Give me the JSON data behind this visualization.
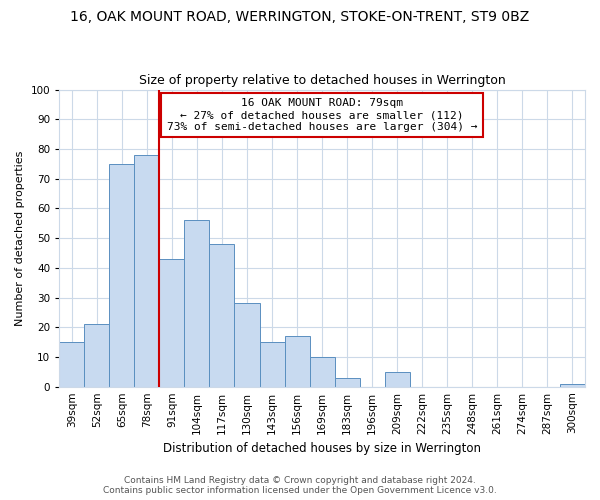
{
  "title": "16, OAK MOUNT ROAD, WERRINGTON, STOKE-ON-TRENT, ST9 0BZ",
  "subtitle": "Size of property relative to detached houses in Werrington",
  "xlabel": "Distribution of detached houses by size in Werrington",
  "ylabel": "Number of detached properties",
  "bin_labels": [
    "39sqm",
    "52sqm",
    "65sqm",
    "78sqm",
    "91sqm",
    "104sqm",
    "117sqm",
    "130sqm",
    "143sqm",
    "156sqm",
    "169sqm",
    "183sqm",
    "196sqm",
    "209sqm",
    "222sqm",
    "235sqm",
    "248sqm",
    "261sqm",
    "274sqm",
    "287sqm",
    "300sqm"
  ],
  "bar_values": [
    15,
    21,
    75,
    78,
    43,
    56,
    48,
    28,
    15,
    17,
    10,
    3,
    0,
    5,
    0,
    0,
    0,
    0,
    0,
    0,
    1
  ],
  "bar_color": "#c8daf0",
  "bar_edge_color": "#5a8fc0",
  "vline_x_index": 3,
  "vline_color": "#cc0000",
  "annotation_line1": "16 OAK MOUNT ROAD: 79sqm",
  "annotation_line2": "← 27% of detached houses are smaller (112)",
  "annotation_line3": "73% of semi-detached houses are larger (304) →",
  "annotation_box_edge_color": "#cc0000",
  "annotation_box_facecolor": "#ffffff",
  "ylim": [
    0,
    100
  ],
  "yticks": [
    0,
    10,
    20,
    30,
    40,
    50,
    60,
    70,
    80,
    90,
    100
  ],
  "footer_line1": "Contains HM Land Registry data © Crown copyright and database right 2024.",
  "footer_line2": "Contains public sector information licensed under the Open Government Licence v3.0.",
  "title_fontsize": 10,
  "subtitle_fontsize": 9,
  "xlabel_fontsize": 8.5,
  "ylabel_fontsize": 8,
  "tick_fontsize": 7.5,
  "footer_fontsize": 6.5,
  "annotation_fontsize": 8,
  "background_color": "#ffffff",
  "grid_color": "#ccd9e8"
}
